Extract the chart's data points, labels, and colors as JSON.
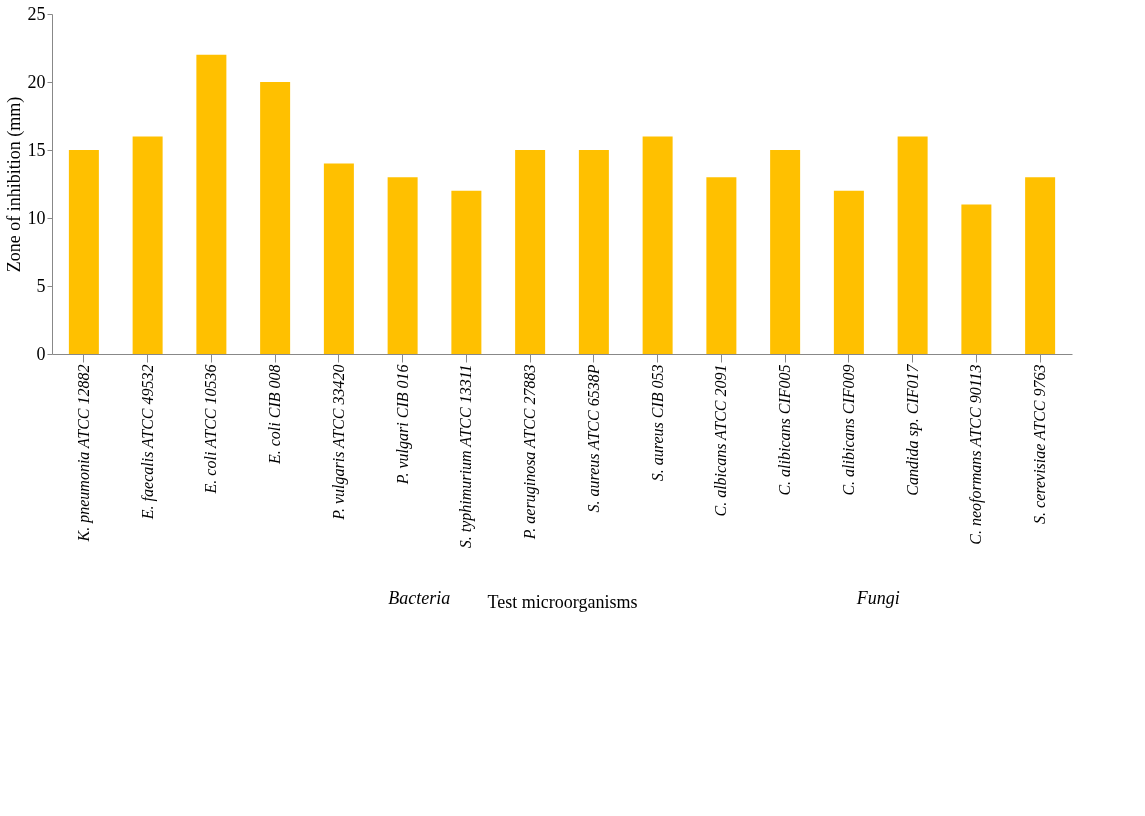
{
  "chart_data": {
    "type": "bar",
    "xlabel": "Test microorganisms",
    "ylabel": "Zone of inhibition (mm)",
    "categories": [
      "K. pneumonia  ATCC 12882",
      "E. faecalis ATCC 49532",
      "E. coli ATCC 10536",
      "E. coli CIB 008",
      "P. vulgaris ATCC 33420",
      "P. vulgari CIB 016",
      "S. typhimurium ATCC 13311",
      "P. aeruginosa ATCC 27883",
      "S. aureus ATCC 6538P",
      "S. aureus CIB 053",
      "C. albicans ATCC 2091",
      "C. alibicans CIF005",
      "C. alibicans CIF009",
      "Candida sp. CIF017",
      "C. neoformans ATCC 90113",
      "S. cerevisiae ATCC 9763"
    ],
    "values": [
      15,
      16,
      22,
      20,
      14,
      13,
      12,
      15,
      15,
      16,
      13,
      15,
      12,
      16,
      11,
      13
    ],
    "color": "#ffc000",
    "ylim": [
      0,
      25
    ],
    "yticks": [
      0,
      5,
      10,
      15,
      20,
      25
    ],
    "grid": false,
    "annotations": [
      "Bacteria",
      "Fungi"
    ]
  }
}
